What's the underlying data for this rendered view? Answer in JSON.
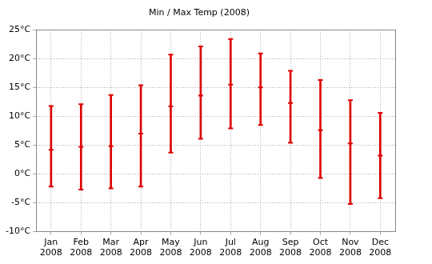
{
  "chart_data": {
    "type": "errorbar",
    "title": "Min / Max Temp (2008)",
    "categories": [
      "Jan 2008",
      "Feb 2008",
      "Mar 2008",
      "Apr 2008",
      "May 2008",
      "Jun 2008",
      "Jul 2008",
      "Aug 2008",
      "Sep 2008",
      "Oct 2008",
      "Nov 2008",
      "Dec 2008"
    ],
    "values": [
      4.2,
      4.7,
      4.8,
      7.0,
      11.7,
      13.6,
      15.5,
      15.0,
      12.3,
      7.6,
      5.3,
      3.2
    ],
    "low": [
      -2.2,
      -2.7,
      -2.5,
      -2.2,
      3.7,
      6.1,
      7.9,
      8.5,
      5.4,
      -0.7,
      -5.2,
      -4.2
    ],
    "high": [
      11.8,
      12.1,
      13.7,
      15.4,
      20.7,
      22.1,
      23.4,
      20.9,
      17.9,
      16.3,
      12.8,
      10.6
    ],
    "color": "#dd0000",
    "ylim": [
      -10,
      25
    ],
    "yticks": [
      {
        "value": -10,
        "label": "-10°C"
      },
      {
        "value": -5,
        "label": "-5°C"
      },
      {
        "value": 0,
        "label": "0°C"
      },
      {
        "value": 5,
        "label": "5°C"
      },
      {
        "value": 10,
        "label": "10°C"
      },
      {
        "value": 15,
        "label": "15°C"
      },
      {
        "value": 20,
        "label": "20°C"
      },
      {
        "value": 25,
        "label": "25°C"
      }
    ],
    "grid": true
  }
}
